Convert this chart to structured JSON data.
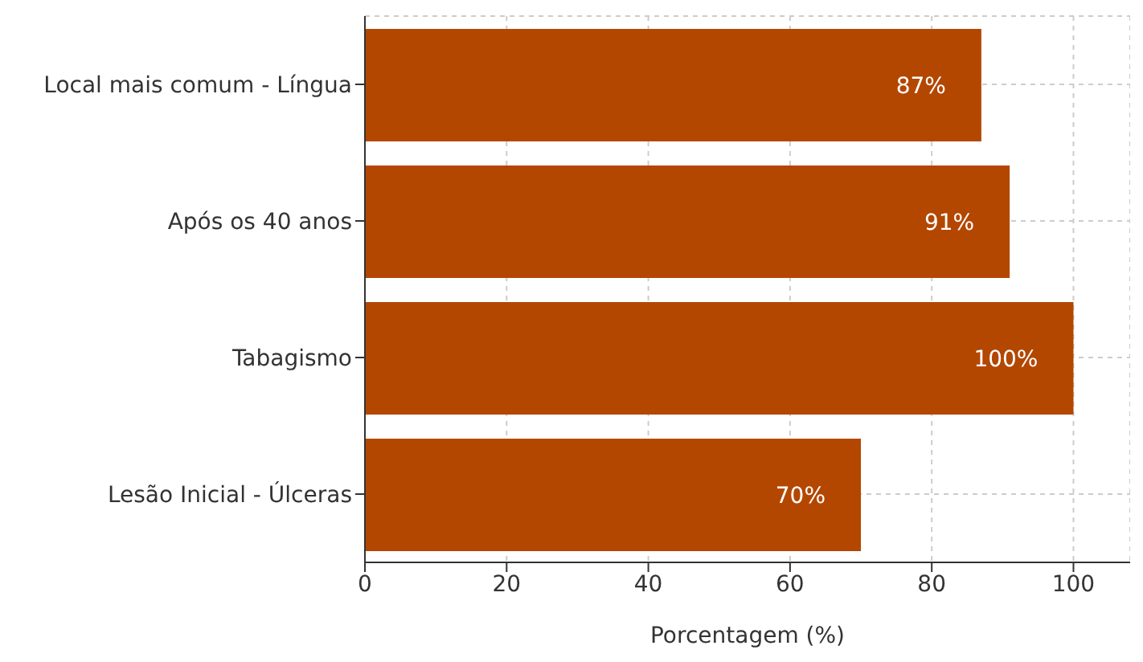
{
  "chart_data": {
    "type": "bar",
    "orientation": "horizontal",
    "xlabel": "Porcentagem (%)",
    "categories": [
      "Local mais comum - Língua",
      "Após os 40 anos",
      "Tabagismo",
      "Lesão Inicial - Úlceras"
    ],
    "values": [
      87,
      91,
      100,
      70
    ],
    "value_labels": [
      "87%",
      "91%",
      "100%",
      "70%"
    ],
    "color": "#b34700",
    "xlim": [
      0,
      108
    ],
    "xticks": [
      0,
      20,
      40,
      60,
      80,
      100
    ],
    "grid": true
  }
}
